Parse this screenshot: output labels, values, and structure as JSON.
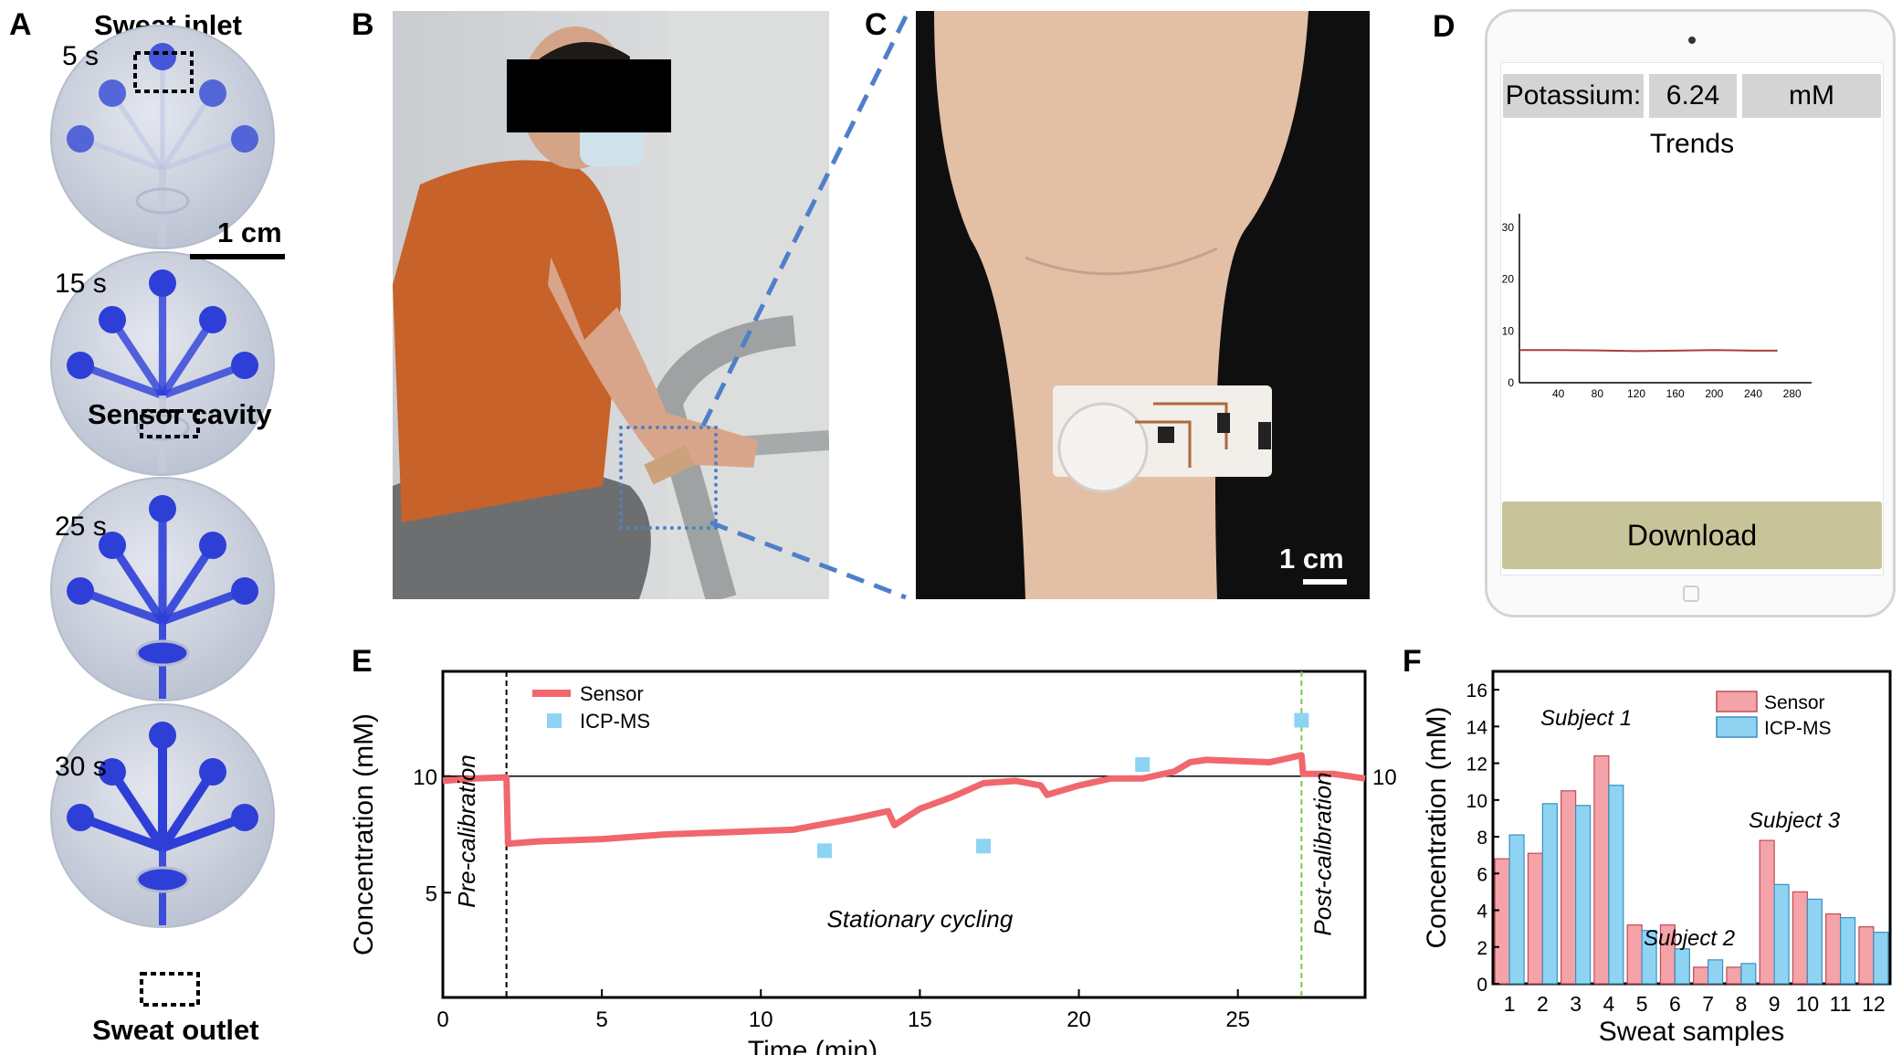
{
  "panels": {
    "a": {
      "letter": "A",
      "inlet": "Sweat inlet",
      "outlet": "Sweat outlet",
      "cavity": "Sensor cavity",
      "scale": "1 cm",
      "times": [
        "5 s",
        "15 s",
        "25 s",
        "30 s"
      ],
      "fill_levels": [
        0.25,
        0.7,
        0.85,
        1.0
      ]
    },
    "b": {
      "letter": "B"
    },
    "c": {
      "letter": "C",
      "scale": "1 cm"
    },
    "d": {
      "letter": "D",
      "analyte_label": "Potassium:",
      "value": "6.24",
      "unit": "mM",
      "trend_title": "Trends",
      "button_label": "Download",
      "y_ticks": [
        "0",
        "10",
        "20",
        "30"
      ],
      "x_ticks": [
        "40",
        "80",
        "120",
        "160",
        "200",
        "240",
        "280"
      ]
    },
    "e": {
      "letter": "E"
    },
    "f": {
      "letter": "F"
    }
  },
  "chart_data": [
    {
      "panel": "E",
      "type": "line",
      "xlabel": "Time (min)",
      "ylabel": "Concentration (mM)",
      "xlim": [
        0,
        29
      ],
      "ylim": [
        0.5,
        14.5
      ],
      "x_ticks": [
        0,
        5,
        10,
        15,
        20,
        25
      ],
      "y_ticks": [
        5,
        10
      ],
      "right_tick": "10",
      "reference_line": 10,
      "legend": [
        "Sensor",
        "ICP-MS"
      ],
      "annotations": [
        "Pre-calibration",
        "Stationary cycling",
        "Post-calibration"
      ],
      "series": [
        {
          "name": "Sensor",
          "x": [
            0,
            1,
            2,
            2.05,
            3,
            5,
            7,
            9,
            11,
            13,
            14,
            14.2,
            15,
            16,
            17,
            18,
            18.8,
            19,
            20,
            21,
            22,
            23,
            23.5,
            24,
            26,
            27,
            27.05,
            28,
            29
          ],
          "y": [
            9.8,
            9.9,
            9.95,
            7.1,
            7.2,
            7.3,
            7.5,
            7.6,
            7.7,
            8.2,
            8.5,
            7.9,
            8.6,
            9.1,
            9.7,
            9.8,
            9.6,
            9.2,
            9.6,
            9.9,
            9.9,
            10.2,
            10.6,
            10.7,
            10.6,
            10.9,
            10.1,
            10.1,
            9.9
          ]
        },
        {
          "name": "ICP-MS",
          "x": [
            12,
            17,
            22,
            27
          ],
          "y": [
            6.8,
            7.0,
            10.5,
            12.4
          ]
        }
      ]
    },
    {
      "panel": "F",
      "type": "bar",
      "xlabel": "Sweat samples",
      "ylabel": "Concentration (mM)",
      "ylim": [
        0,
        17
      ],
      "y_ticks": [
        0,
        2,
        4,
        6,
        8,
        10,
        12,
        14,
        16
      ],
      "categories": [
        "1",
        "2",
        "3",
        "4",
        "5",
        "6",
        "7",
        "8",
        "9",
        "10",
        "11",
        "12"
      ],
      "annotations": [
        "Subject 1",
        "Subject 2",
        "Subject 3"
      ],
      "series": [
        {
          "name": "Sensor",
          "values": [
            6.8,
            7.1,
            10.5,
            12.4,
            3.2,
            3.2,
            0.9,
            0.9,
            7.8,
            5.0,
            3.8,
            3.1
          ]
        },
        {
          "name": "ICP-MS",
          "values": [
            8.1,
            9.8,
            9.7,
            10.8,
            2.9,
            1.9,
            1.3,
            1.1,
            5.4,
            4.6,
            3.6,
            2.8
          ]
        }
      ],
      "colors": {
        "Sensor": "#f4a3a8",
        "ICP-MS": "#8fd3f2"
      }
    }
  ],
  "phone_trend": {
    "x": [
      0,
      40,
      80,
      120,
      160,
      200,
      240,
      265
    ],
    "y": [
      6.3,
      6.3,
      6.25,
      6.1,
      6.2,
      6.3,
      6.2,
      6.2
    ],
    "xlim": [
      0,
      300
    ],
    "ylim": [
      0,
      30
    ]
  },
  "colors": {
    "sensor": "#f0676d",
    "icp": "#8fd3f2",
    "reference": "#000000",
    "guide": "#4f7fc9",
    "channel": "#2e3fd8",
    "download": "#c8c49a"
  }
}
